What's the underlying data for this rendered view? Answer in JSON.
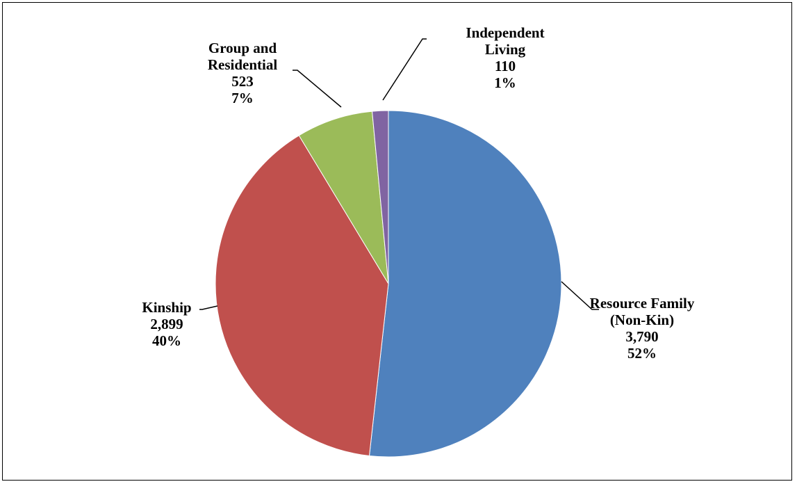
{
  "chart_data": {
    "type": "pie",
    "title": "",
    "slices": [
      {
        "label": "Resource Family (Non-Kin)",
        "label_lines": [
          "Resource Family",
          "(Non-Kin)"
        ],
        "value": 3790,
        "value_text": "3,790",
        "percent_text": "52%",
        "color": "#4F81BD"
      },
      {
        "label": "Kinship",
        "label_lines": [
          "Kinship"
        ],
        "value": 2899,
        "value_text": "2,899",
        "percent_text": "40%",
        "color": "#C0504D"
      },
      {
        "label": "Group and Residential",
        "label_lines": [
          "Group and",
          "Residential"
        ],
        "value": 523,
        "value_text": "523",
        "percent_text": "7%",
        "color": "#9BBB59"
      },
      {
        "label": "Independent Living",
        "label_lines": [
          "Independent",
          "Living"
        ],
        "value": 110,
        "value_text": "110",
        "percent_text": "1%",
        "color": "#8064A2"
      }
    ],
    "start_angle_deg": 0,
    "direction": "clockwise",
    "legend": "none",
    "data_labels": "outside with leader lines"
  }
}
